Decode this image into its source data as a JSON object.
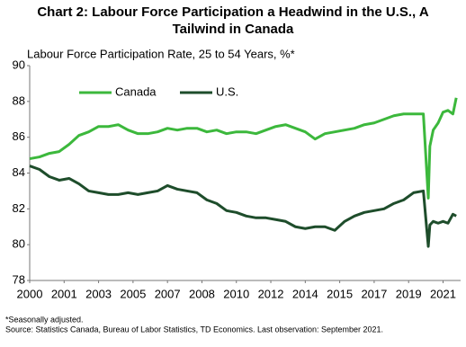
{
  "chart_data": {
    "type": "line",
    "title": "Chart 2: Labour Force Participation a Headwind in the U.S., A Tailwind in Canada",
    "subtitle": "Labour Force Participation Rate, 25 to 54 Years, %*",
    "footnotes": [
      "*Seasonally adjusted.",
      "Source: Statistics Canada, Bureau of Labor Statistics, TD Economics. Last observation: September 2021."
    ],
    "x": [
      2000,
      2000.5,
      2001,
      2001.5,
      2002,
      2002.5,
      2003,
      2003.5,
      2004,
      2004.5,
      2005,
      2005.5,
      2006,
      2006.5,
      2007,
      2007.5,
      2008,
      2008.5,
      2009,
      2009.5,
      2010,
      2010.5,
      2011,
      2011.5,
      2012,
      2012.5,
      2013,
      2013.5,
      2014,
      2014.5,
      2015,
      2015.5,
      2016,
      2016.5,
      2017,
      2017.5,
      2018,
      2018.5,
      2019,
      2019.5,
      2020,
      2020.25,
      2020.33,
      2020.5,
      2020.75,
      2021,
      2021.25,
      2021.5,
      2021.67
    ],
    "series": [
      {
        "name": "Canada",
        "color": "#3cb83c",
        "values": [
          84.8,
          84.9,
          85.1,
          85.2,
          85.6,
          86.1,
          86.3,
          86.6,
          86.6,
          86.7,
          86.4,
          86.2,
          86.2,
          86.3,
          86.5,
          86.4,
          86.5,
          86.5,
          86.3,
          86.4,
          86.2,
          86.3,
          86.3,
          86.2,
          86.4,
          86.6,
          86.7,
          86.5,
          86.3,
          85.9,
          86.2,
          86.3,
          86.4,
          86.5,
          86.7,
          86.8,
          87.0,
          87.2,
          87.3,
          87.3,
          87.3,
          82.6,
          85.5,
          86.4,
          86.8,
          87.4,
          87.5,
          87.3,
          88.2
        ]
      },
      {
        "name": "U.S.",
        "color": "#1e4d2b",
        "values": [
          84.4,
          84.2,
          83.8,
          83.6,
          83.7,
          83.4,
          83.0,
          82.9,
          82.8,
          82.8,
          82.9,
          82.8,
          82.9,
          83.0,
          83.3,
          83.1,
          83.0,
          82.9,
          82.5,
          82.3,
          81.9,
          81.8,
          81.6,
          81.5,
          81.5,
          81.4,
          81.3,
          81.0,
          80.9,
          81.0,
          81.0,
          80.8,
          81.3,
          81.6,
          81.8,
          81.9,
          82.0,
          82.3,
          82.5,
          82.9,
          83.0,
          79.9,
          81.1,
          81.3,
          81.2,
          81.3,
          81.2,
          81.7,
          81.6
        ]
      }
    ],
    "xlim": [
      2000,
      2021.8
    ],
    "xticks": [
      2000,
      {
        "value": 2001.75,
        "label": "2001"
      },
      {
        "value": 2003.5,
        "label": "2003"
      },
      {
        "value": 2005.25,
        "label": "2005"
      },
      2007,
      {
        "value": 2008.75,
        "label": "2008"
      },
      {
        "value": 2010.5,
        "label": "2010"
      },
      {
        "value": 2012.25,
        "label": "2012"
      },
      2014,
      {
        "value": 2015.75,
        "label": "2015"
      },
      {
        "value": 2017.5,
        "label": "2017"
      },
      {
        "value": 2019.25,
        "label": "2019"
      },
      2021
    ],
    "ylim": [
      78,
      90
    ],
    "yticks": [
      78,
      80,
      82,
      84,
      86,
      88,
      90
    ],
    "grid": false,
    "legend": "top-left"
  }
}
